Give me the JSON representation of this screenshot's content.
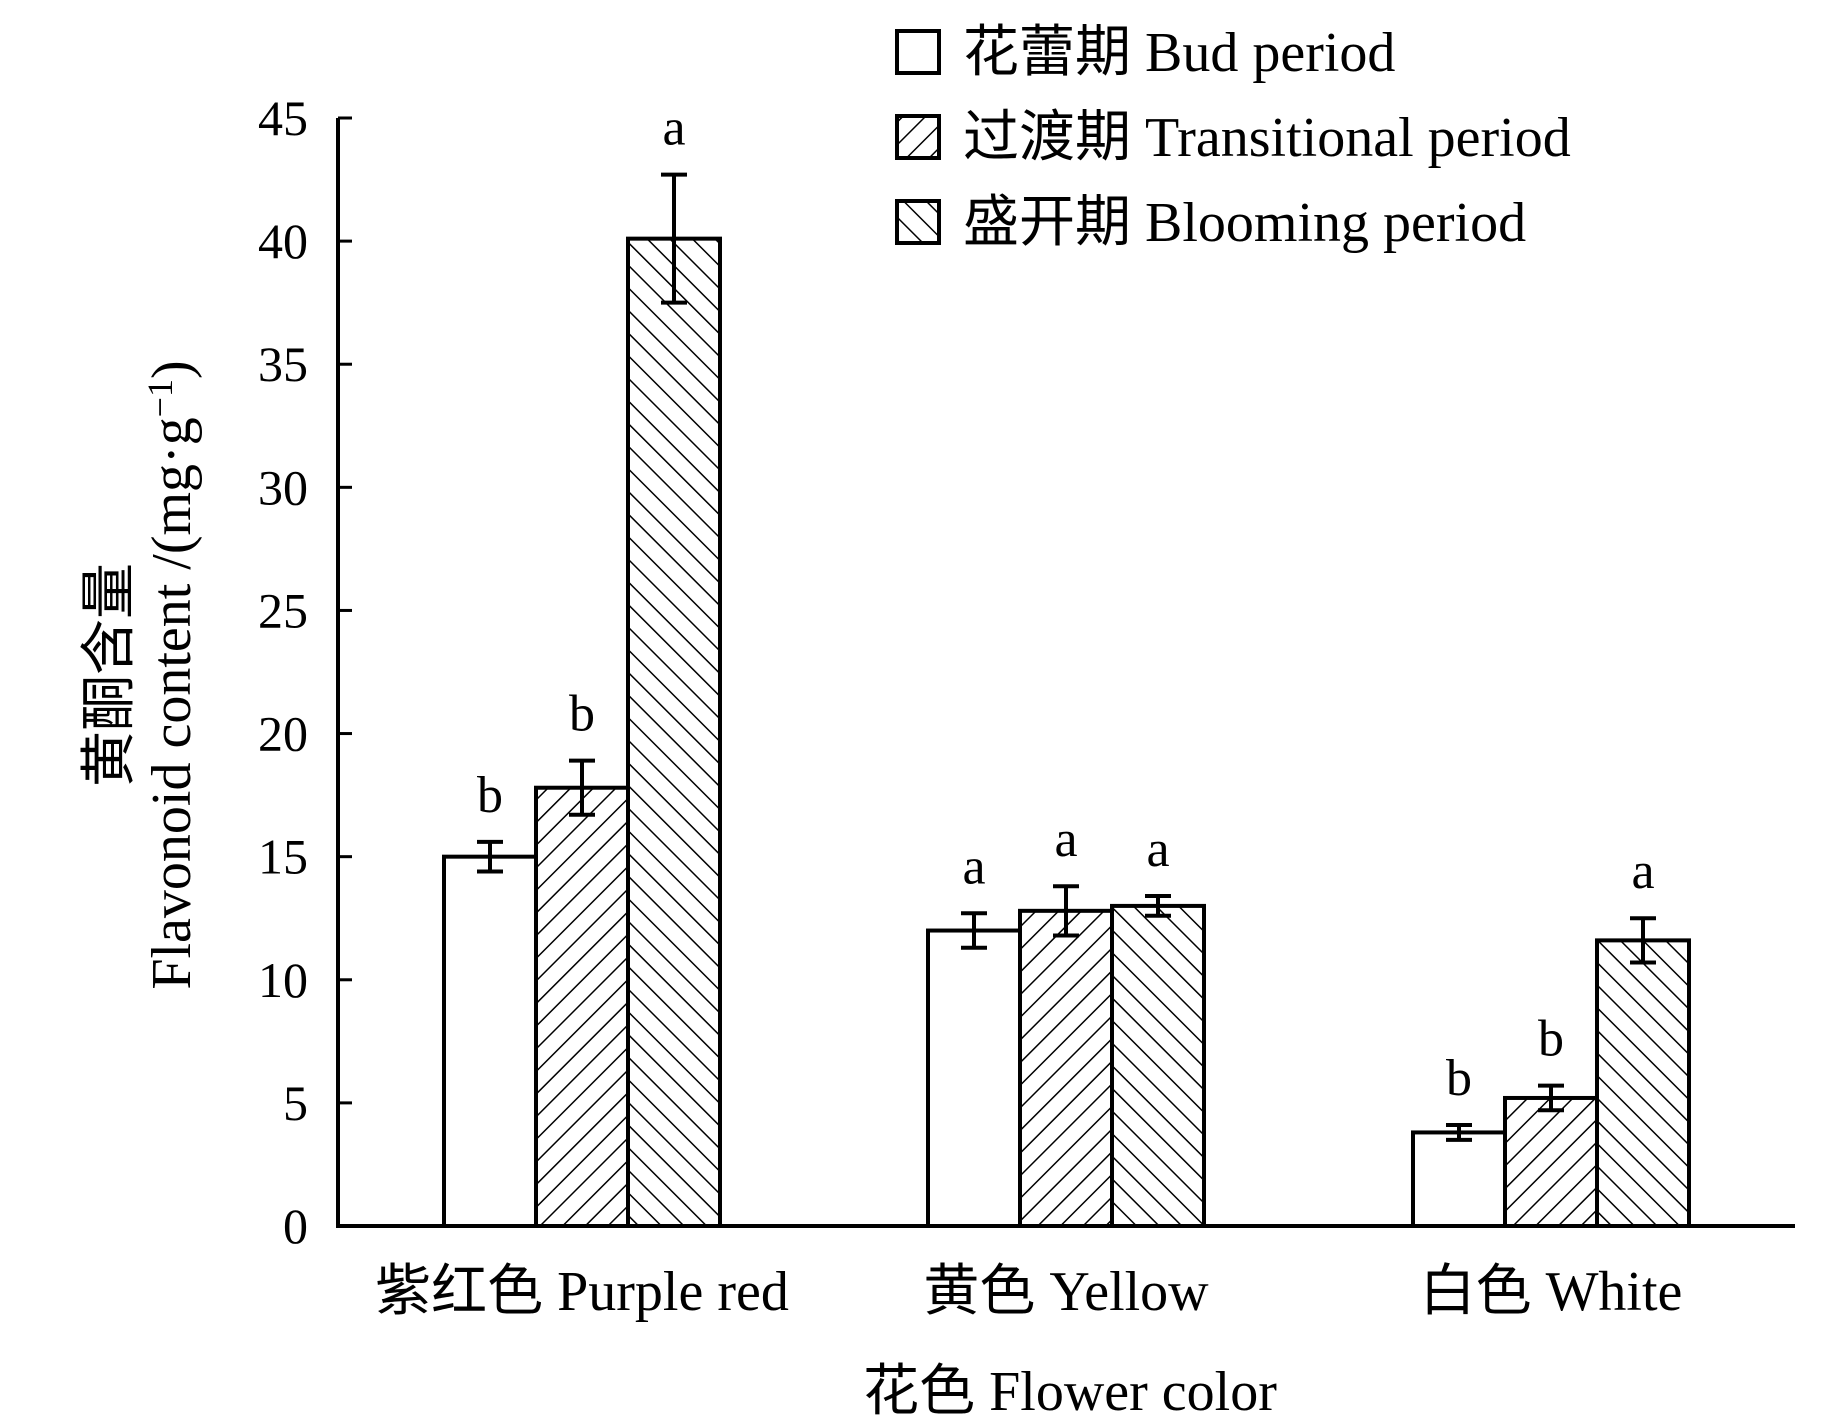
{
  "chart_data": {
    "type": "bar",
    "xlabel": "花色  Flower color",
    "ylabel_cn": "黄酮含量",
    "ylabel_en_prefix": "Flavonoid content /(mg·g",
    "ylabel_sup": "−1",
    "ylabel_suffix": ")",
    "ylim": [
      0,
      45
    ],
    "yticks": [
      "0",
      "5",
      "10",
      "15",
      "20",
      "25",
      "30",
      "35",
      "40",
      "45"
    ],
    "categories": [
      "紫红色 Purple red",
      "黄色 Yellow",
      "白色 White"
    ],
    "legend_position": "top-right",
    "grid": false,
    "series": [
      {
        "name": "花蕾期 Bud period",
        "pattern": "none",
        "values": [
          15.0,
          12.0,
          3.8
        ],
        "errors": [
          0.6,
          0.7,
          0.3
        ],
        "letters": [
          "b",
          "a",
          "b"
        ]
      },
      {
        "name": "过渡期 Transitional period",
        "pattern": "forward-hatch",
        "values": [
          17.8,
          12.8,
          5.2
        ],
        "errors": [
          1.1,
          1.0,
          0.5
        ],
        "letters": [
          "b",
          "a",
          "b"
        ]
      },
      {
        "name": "盛开期 Blooming period",
        "pattern": "back-hatch",
        "values": [
          40.1,
          13.0,
          11.6
        ],
        "errors": [
          2.6,
          0.4,
          0.9
        ],
        "letters": [
          "a",
          "a",
          "a"
        ]
      }
    ]
  }
}
